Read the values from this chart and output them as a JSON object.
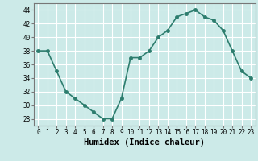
{
  "x": [
    0,
    1,
    2,
    3,
    4,
    5,
    6,
    7,
    8,
    9,
    10,
    11,
    12,
    13,
    14,
    15,
    16,
    17,
    18,
    19,
    20,
    21,
    22,
    23
  ],
  "y": [
    38,
    38,
    35,
    32,
    31,
    30,
    29,
    28,
    28,
    31,
    37,
    37,
    38,
    40,
    41,
    43,
    43.5,
    44,
    43,
    42.5,
    41,
    38,
    35,
    34
  ],
  "line_color": "#2d7d6e",
  "marker": "o",
  "marker_size": 2.5,
  "linewidth": 1.2,
  "bg_color": "#cceae8",
  "grid_color": "#ffffff",
  "xlabel": "Humidex (Indice chaleur)",
  "ylabel": "",
  "ylim": [
    27,
    45
  ],
  "xlim": [
    -0.5,
    23.5
  ],
  "yticks": [
    28,
    30,
    32,
    34,
    36,
    38,
    40,
    42,
    44
  ],
  "xticks": [
    0,
    1,
    2,
    3,
    4,
    5,
    6,
    7,
    8,
    9,
    10,
    11,
    12,
    13,
    14,
    15,
    16,
    17,
    18,
    19,
    20,
    21,
    22,
    23
  ],
  "tick_fontsize": 5.5,
  "xlabel_fontsize": 7.5
}
